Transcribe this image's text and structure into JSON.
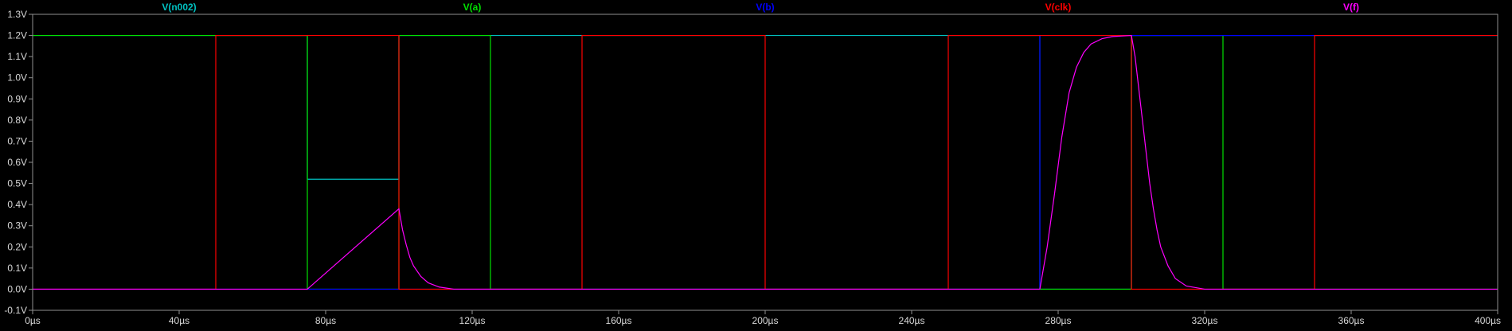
{
  "chart_data": {
    "type": "line",
    "title": "",
    "xlabel": "",
    "ylabel": "",
    "xlim": [
      0,
      400
    ],
    "ylim": [
      -0.1,
      1.3
    ],
    "grid": false,
    "legend_placement": "top",
    "x_ticks": [
      {
        "value": 0,
        "label": "0µs"
      },
      {
        "value": 40,
        "label": "40µs"
      },
      {
        "value": 80,
        "label": "80µs"
      },
      {
        "value": 120,
        "label": "120µs"
      },
      {
        "value": 160,
        "label": "160µs"
      },
      {
        "value": 200,
        "label": "200µs"
      },
      {
        "value": 240,
        "label": "240µs"
      },
      {
        "value": 280,
        "label": "280µs"
      },
      {
        "value": 320,
        "label": "320µs"
      },
      {
        "value": 360,
        "label": "360µs"
      },
      {
        "value": 400,
        "label": "400µs"
      }
    ],
    "y_ticks": [
      {
        "value": 1.3,
        "label": "1.3V"
      },
      {
        "value": 1.2,
        "label": "1.2V"
      },
      {
        "value": 1.1,
        "label": "1.1V"
      },
      {
        "value": 1.0,
        "label": "1.0V"
      },
      {
        "value": 0.9,
        "label": "0.9V"
      },
      {
        "value": 0.8,
        "label": "0.8V"
      },
      {
        "value": 0.7,
        "label": "0.7V"
      },
      {
        "value": 0.6,
        "label": "0.6V"
      },
      {
        "value": 0.5,
        "label": "0.5V"
      },
      {
        "value": 0.4,
        "label": "0.4V"
      },
      {
        "value": 0.3,
        "label": "0.3V"
      },
      {
        "value": 0.2,
        "label": "0.2V"
      },
      {
        "value": 0.1,
        "label": "0.1V"
      },
      {
        "value": 0.0,
        "label": "0.0V"
      },
      {
        "value": -0.1,
        "label": "-0.1V"
      }
    ],
    "series": [
      {
        "name": "V(n002)",
        "color": "#00c0c0",
        "points": [
          [
            0,
            1.2
          ],
          [
            75,
            1.2
          ],
          [
            75,
            0.52
          ],
          [
            100,
            0.52
          ],
          [
            100,
            1.2
          ],
          [
            275,
            1.2
          ],
          [
            275,
            0.0
          ],
          [
            300,
            0.0
          ],
          [
            300,
            1.2
          ],
          [
            400,
            1.2
          ]
        ]
      },
      {
        "name": "V(a)",
        "color": "#00e000",
        "points": [
          [
            0,
            1.2
          ],
          [
            75,
            1.2
          ],
          [
            75,
            0.0
          ],
          [
            100,
            0.0
          ],
          [
            100,
            1.2
          ],
          [
            125,
            1.2
          ],
          [
            125,
            0.0
          ],
          [
            300,
            0.0
          ],
          [
            300,
            1.2
          ],
          [
            325,
            1.2
          ],
          [
            325,
            0.0
          ],
          [
            400,
            0.0
          ]
        ]
      },
      {
        "name": "V(b)",
        "color": "#0000ff",
        "points": [
          [
            0,
            0.0
          ],
          [
            275,
            0.0
          ],
          [
            275,
            1.2
          ],
          [
            400,
            1.2
          ]
        ]
      },
      {
        "name": "V(clk)",
        "color": "#ff0000",
        "points": [
          [
            0,
            0.0
          ],
          [
            50,
            0.0
          ],
          [
            50,
            1.2
          ],
          [
            100,
            1.2
          ],
          [
            100,
            0.0
          ],
          [
            150,
            0.0
          ],
          [
            150,
            1.2
          ],
          [
            200,
            1.2
          ],
          [
            200,
            0.0
          ],
          [
            250,
            0.0
          ],
          [
            250,
            1.2
          ],
          [
            300,
            1.2
          ],
          [
            300,
            0.0
          ],
          [
            350,
            0.0
          ],
          [
            350,
            1.2
          ],
          [
            400,
            1.2
          ]
        ]
      },
      {
        "name": "V(f)",
        "color": "#ff00ff",
        "points": [
          [
            0,
            0.0
          ],
          [
            75,
            0.0
          ],
          [
            100,
            0.38
          ],
          [
            101,
            0.28
          ],
          [
            102,
            0.21
          ],
          [
            103,
            0.15
          ],
          [
            104,
            0.11
          ],
          [
            106,
            0.06
          ],
          [
            108,
            0.03
          ],
          [
            111,
            0.01
          ],
          [
            115,
            0.0
          ],
          [
            275,
            0.0
          ],
          [
            277,
            0.2
          ],
          [
            279,
            0.45
          ],
          [
            281,
            0.72
          ],
          [
            283,
            0.93
          ],
          [
            285,
            1.05
          ],
          [
            287,
            1.12
          ],
          [
            289,
            1.16
          ],
          [
            292,
            1.185
          ],
          [
            295,
            1.195
          ],
          [
            300,
            1.2
          ],
          [
            301,
            1.1
          ],
          [
            302,
            0.95
          ],
          [
            303,
            0.8
          ],
          [
            304,
            0.65
          ],
          [
            305,
            0.5
          ],
          [
            306,
            0.38
          ],
          [
            307,
            0.28
          ],
          [
            308,
            0.2
          ],
          [
            310,
            0.11
          ],
          [
            312,
            0.05
          ],
          [
            315,
            0.015
          ],
          [
            320,
            0.0
          ],
          [
            400,
            0.0
          ]
        ]
      }
    ]
  }
}
